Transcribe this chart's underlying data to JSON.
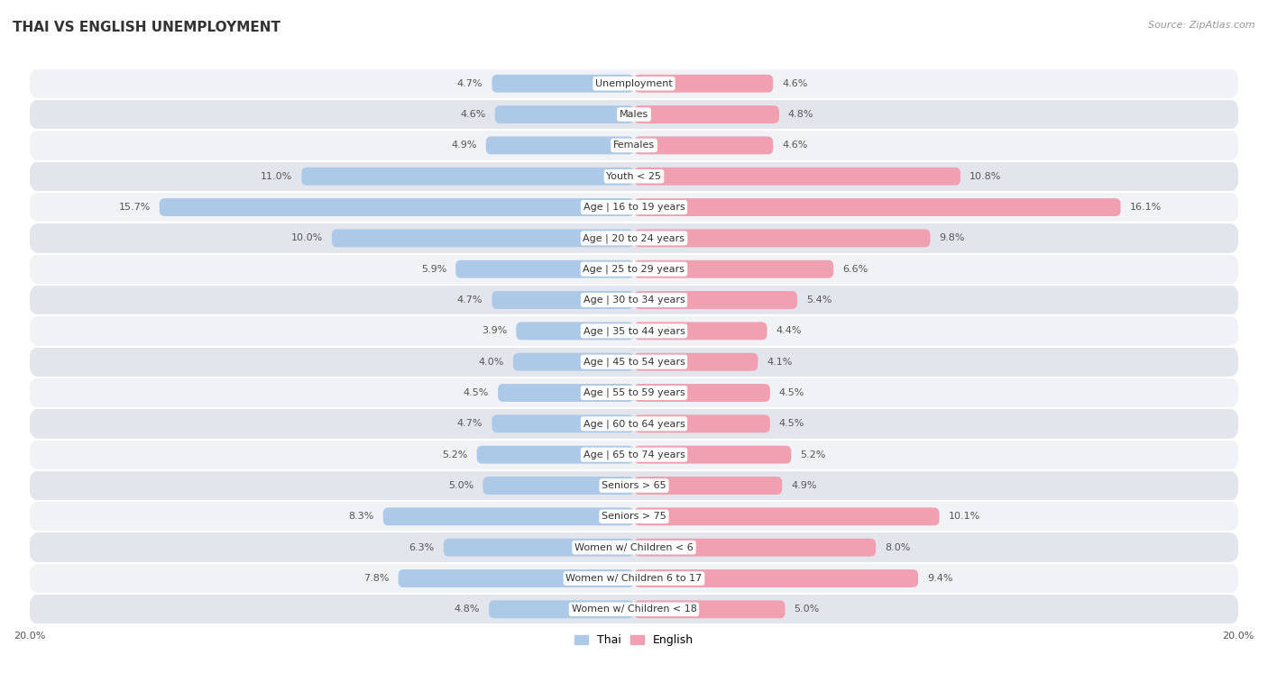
{
  "title": "Thai vs English Unemployment",
  "source": "Source: ZipAtlas.com",
  "categories": [
    "Unemployment",
    "Males",
    "Females",
    "Youth < 25",
    "Age | 16 to 19 years",
    "Age | 20 to 24 years",
    "Age | 25 to 29 years",
    "Age | 30 to 34 years",
    "Age | 35 to 44 years",
    "Age | 45 to 54 years",
    "Age | 55 to 59 years",
    "Age | 60 to 64 years",
    "Age | 65 to 74 years",
    "Seniors > 65",
    "Seniors > 75",
    "Women w/ Children < 6",
    "Women w/ Children 6 to 17",
    "Women w/ Children < 18"
  ],
  "thai_values": [
    4.7,
    4.6,
    4.9,
    11.0,
    15.7,
    10.0,
    5.9,
    4.7,
    3.9,
    4.0,
    4.5,
    4.7,
    5.2,
    5.0,
    8.3,
    6.3,
    7.8,
    4.8
  ],
  "english_values": [
    4.6,
    4.8,
    4.6,
    10.8,
    16.1,
    9.8,
    6.6,
    5.4,
    4.4,
    4.1,
    4.5,
    4.5,
    5.2,
    4.9,
    10.1,
    8.0,
    9.4,
    5.0
  ],
  "thai_color": "#adc9e8",
  "english_color": "#f0a0b0",
  "max_value": 20.0,
  "bar_height": 0.58,
  "row_colors_odd": "#f0f2f5",
  "row_colors_even": "#e2e6ec",
  "background_color": "#ffffff",
  "title_fontsize": 11,
  "label_fontsize": 8,
  "value_fontsize": 8,
  "legend_fontsize": 9,
  "source_fontsize": 8
}
